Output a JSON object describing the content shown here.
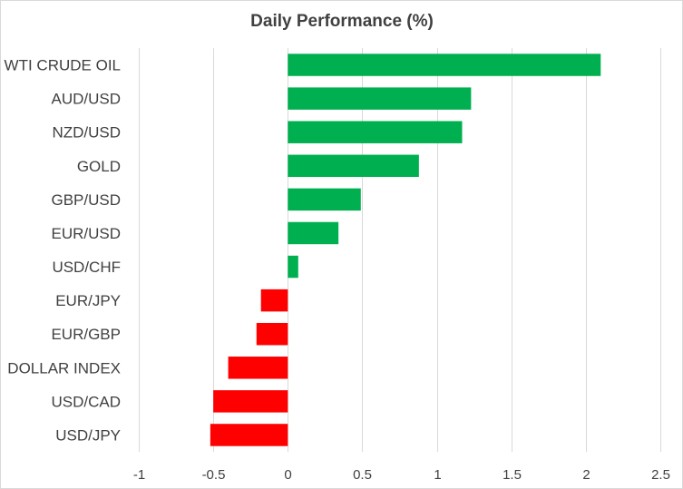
{
  "chart_data": {
    "type": "bar",
    "orientation": "horizontal",
    "title": "Daily Performance (%)",
    "xlabel": "",
    "ylabel": "",
    "categories": [
      "WTI CRUDE OIL",
      "AUD/USD",
      "NZD/USD",
      "GOLD",
      "GBP/USD",
      "EUR/USD",
      "USD/CHF",
      "EUR/JPY",
      "EUR/GBP",
      "DOLLAR INDEX",
      "USD/CAD",
      "USD/JPY"
    ],
    "values": [
      2.1,
      1.23,
      1.17,
      0.88,
      0.49,
      0.34,
      0.07,
      -0.18,
      -0.21,
      -0.4,
      -0.5,
      -0.52
    ],
    "xlim": [
      -1,
      2.5
    ],
    "xticks": [
      -1,
      -0.5,
      0,
      0.5,
      1,
      1.5,
      2,
      2.5
    ],
    "xtick_labels": [
      "-1",
      "-0.5",
      "0",
      "0.5",
      "1",
      "1.5",
      "2",
      "2.5"
    ],
    "grid": "vertical",
    "legend": "none",
    "colors": {
      "positive": "#00b050",
      "negative": "#ff0000",
      "grid": "#d9d9d9",
      "text": "#404040"
    }
  }
}
